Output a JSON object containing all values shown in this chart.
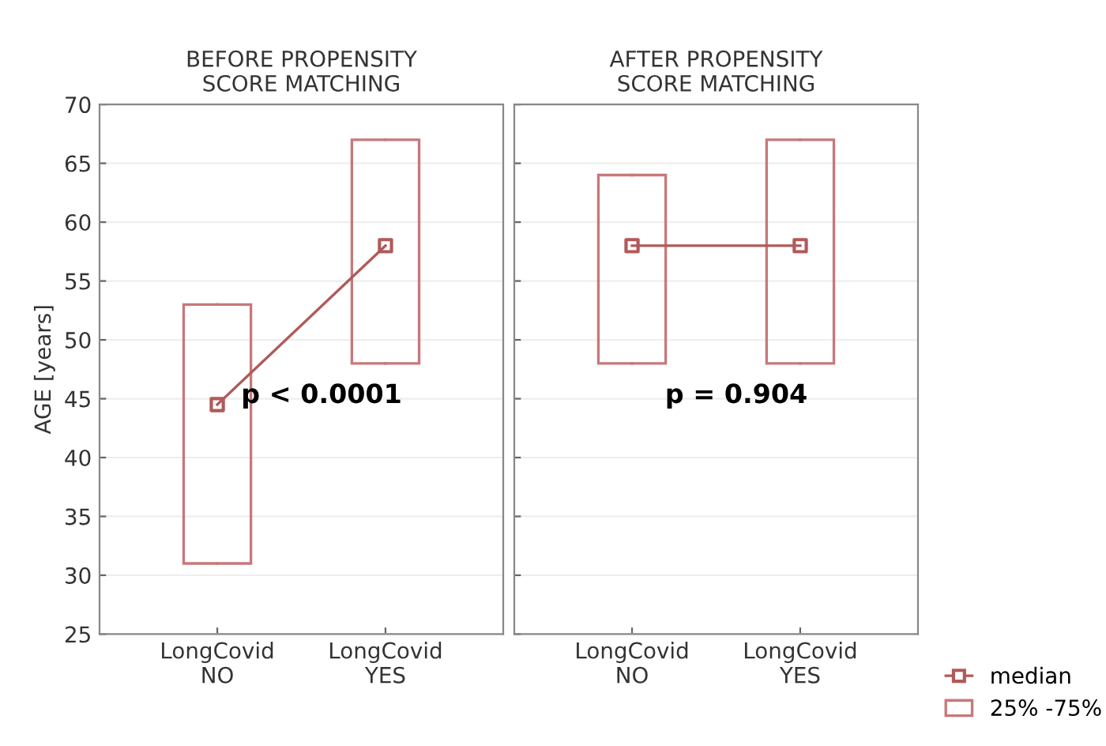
{
  "chart_data": [
    {
      "type": "box",
      "title": "BEFORE PROPENSITY\nSCORE MATCHING",
      "ylabel": "AGE [years]",
      "categories": [
        "LongCovid\nNO",
        "LongCovid\nYES"
      ],
      "ylim": [
        25,
        70
      ],
      "yticks": [
        25,
        30,
        35,
        40,
        45,
        50,
        55,
        60,
        65,
        70
      ],
      "grid": "y",
      "legend": false,
      "series": [
        {
          "color": "#c8787a",
          "marker": "square",
          "boxes": [
            {
              "low": 31,
              "q1": 31,
              "median": 44.5,
              "q3": 53,
              "high": 53
            },
            {
              "low": 48,
              "q1": 48,
              "median": 58,
              "q3": 67,
              "high": 67
            }
          ]
        },
        {
          "type": "line",
          "color": "#b05a5a",
          "values": [
            44.5,
            58
          ]
        }
      ],
      "annotations": [
        "p < 0.0001"
      ]
    },
    {
      "type": "box",
      "title": "AFTER PROPENSITY\nSCORE MATCHING",
      "categories": [
        "LongCovid\nNO",
        "LongCovid\nYES"
      ],
      "ylim": [
        25,
        70
      ],
      "yticks": [
        25,
        30,
        35,
        40,
        45,
        50,
        55,
        60,
        65,
        70
      ],
      "grid": "y",
      "tick_labels": "x",
      "legend": "bottom right",
      "series": [
        {
          "name": "25% -75%",
          "color": "#c8787a",
          "marker": "square",
          "boxes": [
            {
              "low": 48,
              "q1": 48,
              "median": 58,
              "q3": 64,
              "high": 64
            },
            {
              "low": 48,
              "q1": 48,
              "median": 58,
              "q3": 67,
              "high": 67
            }
          ]
        },
        {
          "name": "median",
          "type": "line",
          "color": "#b05a5a",
          "values": [
            58,
            58
          ]
        }
      ],
      "annotations": [
        "p = 0.904"
      ]
    }
  ]
}
